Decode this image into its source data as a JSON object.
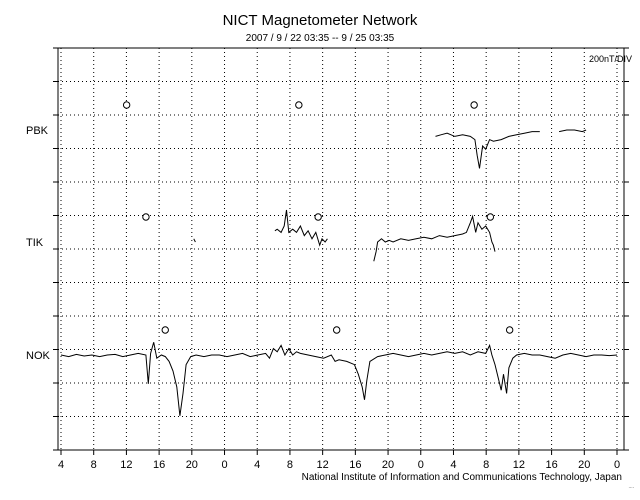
{
  "chart_data": {
    "type": "line",
    "title": "NICT Magnetometer Network",
    "subtitle": "2007 / 9 / 22  03:35 --  9 / 25  03:35",
    "scale_label": "200nT/DIV",
    "credit": "National Institute of Information and Communications Technology, Japan",
    "corner_mark": "....",
    "x_unit": "hours since 2007-09-22 03:35 (local time)",
    "xlim": [
      0,
      72
    ],
    "x_tick_labels": [
      "4",
      "8",
      "12",
      "16",
      "20",
      "0",
      "4",
      "8",
      "12",
      "16",
      "20",
      "0",
      "4",
      "8",
      "12",
      "16",
      "20",
      "0"
    ],
    "grid": true,
    "stations": [
      {
        "name": "PBK",
        "markers_x": [
          8.5,
          30.8,
          53.5
        ],
        "segments": [
          [
            [
              48.5,
              -0.2
            ],
            [
              49.2,
              -0.15
            ],
            [
              50,
              -0.1
            ],
            [
              51,
              -0.2
            ],
            [
              52,
              -0.15
            ],
            [
              53,
              -0.2
            ],
            [
              53.6,
              -0.3
            ],
            [
              53.9,
              -0.8
            ],
            [
              54.2,
              -1.2
            ],
            [
              54.6,
              -0.5
            ],
            [
              55,
              -0.6
            ],
            [
              55.5,
              -0.3
            ],
            [
              56,
              -0.35
            ],
            [
              57,
              -0.3
            ],
            [
              58,
              -0.2
            ],
            [
              59,
              -0.15
            ],
            [
              60,
              -0.1
            ],
            [
              61,
              -0.05
            ],
            [
              62,
              -0.05
            ]
          ],
          [
            [
              64.5,
              -0.05
            ],
            [
              65.5,
              0.0
            ],
            [
              66.5,
              0.0
            ],
            [
              67.5,
              -0.05
            ],
            [
              68,
              0.0
            ]
          ]
        ]
      },
      {
        "name": "TIK",
        "markers_x": [
          11,
          33.3,
          55.6
        ],
        "segments": [
          [
            [
              17.2,
              0.1
            ],
            [
              17.4,
              0.0
            ]
          ],
          [
            [
              27.7,
              0.35
            ],
            [
              28,
              0.4
            ],
            [
              28.5,
              0.3
            ],
            [
              28.9,
              0.5
            ],
            [
              29.2,
              1.0
            ],
            [
              29.5,
              0.3
            ],
            [
              30,
              0.4
            ],
            [
              30.5,
              0.3
            ],
            [
              31,
              0.5
            ],
            [
              31.5,
              0.2
            ],
            [
              32,
              0.35
            ],
            [
              32.5,
              0.1
            ],
            [
              33,
              0.3
            ],
            [
              33.5,
              -0.1
            ],
            [
              33.8,
              0.1
            ],
            [
              34.2,
              0.0
            ],
            [
              34.5,
              0.1
            ]
          ],
          [
            [
              40.5,
              -0.6
            ],
            [
              40.8,
              -0.3
            ],
            [
              41,
              0.0
            ],
            [
              41.5,
              0.1
            ],
            [
              42,
              0.0
            ],
            [
              42.5,
              0.05
            ],
            [
              43,
              0.0
            ],
            [
              44,
              0.1
            ],
            [
              45,
              0.05
            ],
            [
              46,
              0.1
            ],
            [
              47,
              0.15
            ],
            [
              48,
              0.1
            ],
            [
              49,
              0.2
            ],
            [
              50,
              0.15
            ],
            [
              51,
              0.2
            ],
            [
              52,
              0.25
            ],
            [
              52.5,
              0.3
            ],
            [
              53,
              0.6
            ],
            [
              53.3,
              0.8
            ],
            [
              53.7,
              0.3
            ],
            [
              54,
              0.6
            ],
            [
              54.5,
              0.4
            ],
            [
              55,
              0.5
            ],
            [
              55.5,
              0.3
            ],
            [
              55.8,
              0.0
            ],
            [
              56,
              -0.1
            ],
            [
              56.2,
              -0.3
            ]
          ]
        ]
      },
      {
        "name": "NOK",
        "markers_x": [
          13.5,
          35.7,
          58.1
        ],
        "segments": [
          [
            [
              0,
              0.0
            ],
            [
              1,
              -0.05
            ],
            [
              2,
              0.02
            ],
            [
              3,
              -0.03
            ],
            [
              4,
              0.0
            ],
            [
              5,
              -0.05
            ],
            [
              6,
              0.0
            ],
            [
              7,
              0.02
            ],
            [
              8,
              -0.05
            ],
            [
              9,
              0.0
            ],
            [
              10,
              0.05
            ],
            [
              11,
              0.0
            ],
            [
              11.3,
              -0.9
            ],
            [
              11.6,
              0.05
            ],
            [
              12,
              0.4
            ],
            [
              12.4,
              -0.1
            ],
            [
              13,
              0.0
            ],
            [
              13.5,
              -0.05
            ],
            [
              14,
              -0.2
            ],
            [
              14.5,
              -0.5
            ],
            [
              15,
              -1.0
            ],
            [
              15.4,
              -1.9
            ],
            [
              15.8,
              -1.2
            ],
            [
              16.2,
              -0.3
            ],
            [
              16.8,
              -0.05
            ],
            [
              17.5,
              0.0
            ],
            [
              18.5,
              -0.05
            ],
            [
              19.5,
              0.0
            ],
            [
              20.5,
              0.0
            ],
            [
              21.5,
              -0.05
            ],
            [
              22.5,
              0.0
            ],
            [
              23.5,
              0.05
            ],
            [
              24.5,
              -0.05
            ],
            [
              25.5,
              0.0
            ],
            [
              26.5,
              0.05
            ],
            [
              27,
              -0.1
            ],
            [
              27.5,
              0.2
            ],
            [
              28,
              0.1
            ],
            [
              28.5,
              0.3
            ],
            [
              29,
              0.0
            ],
            [
              29.5,
              0.2
            ],
            [
              30,
              0.0
            ],
            [
              30.5,
              0.1
            ],
            [
              31,
              0.05
            ],
            [
              32,
              0.0
            ],
            [
              33,
              -0.05
            ],
            [
              34,
              -0.1
            ],
            [
              35,
              0.0
            ],
            [
              35.5,
              -0.2
            ],
            [
              36,
              -0.15
            ],
            [
              37,
              -0.2
            ],
            [
              38,
              -0.3
            ],
            [
              38.5,
              -0.6
            ],
            [
              39,
              -1.0
            ],
            [
              39.3,
              -1.4
            ],
            [
              39.6,
              -0.8
            ],
            [
              40,
              -0.2
            ],
            [
              41,
              -0.05
            ],
            [
              42,
              0.0
            ],
            [
              43,
              0.05
            ],
            [
              44,
              0.0
            ],
            [
              45,
              -0.05
            ],
            [
              46,
              0.0
            ],
            [
              47,
              0.05
            ],
            [
              48,
              0.0
            ],
            [
              49,
              0.05
            ],
            [
              50,
              0.1
            ],
            [
              51,
              0.05
            ],
            [
              52,
              0.1
            ],
            [
              53,
              0.0
            ],
            [
              54,
              0.1
            ],
            [
              55,
              0.05
            ],
            [
              55.5,
              0.3
            ],
            [
              55.8,
              0.0
            ],
            [
              56.2,
              -0.3
            ],
            [
              56.6,
              -0.7
            ],
            [
              57,
              -1.1
            ],
            [
              57.3,
              -0.6
            ],
            [
              57.7,
              -1.2
            ],
            [
              58,
              -0.4
            ],
            [
              58.5,
              -0.1
            ],
            [
              59,
              0.0
            ],
            [
              60,
              0.05
            ],
            [
              61,
              0.0
            ],
            [
              62,
              0.0
            ],
            [
              63,
              -0.05
            ],
            [
              64,
              -0.1
            ],
            [
              65,
              0.0
            ],
            [
              66,
              0.05
            ],
            [
              67,
              0.0
            ],
            [
              68,
              -0.05
            ],
            [
              69,
              0.0
            ],
            [
              70,
              0.0
            ],
            [
              71,
              -0.02
            ],
            [
              72,
              0.0
            ]
          ]
        ]
      }
    ]
  }
}
